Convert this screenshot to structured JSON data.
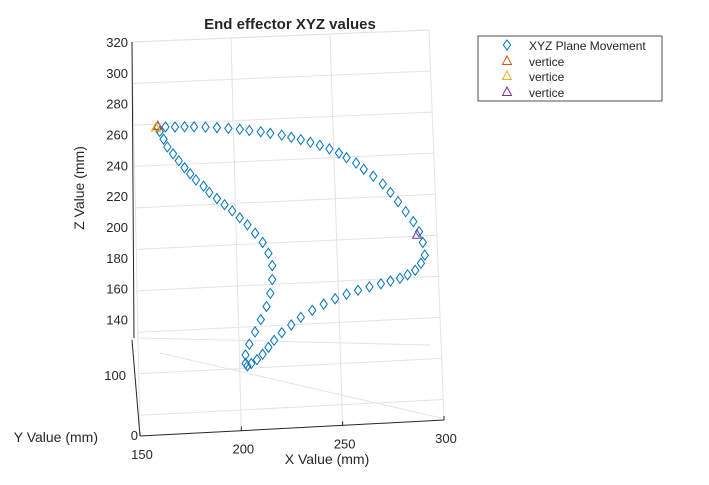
{
  "chart_data": {
    "type": "scatter",
    "title": "End effector XYZ values",
    "xlabel": "X Value (mm)",
    "ylabel": "Y Value (mm)",
    "zlabel": "Z Value (mm)",
    "x_ticks": [
      "150",
      "200",
      "250",
      "300"
    ],
    "y_ticks": [
      "0",
      "100"
    ],
    "z_ticks": [
      "140",
      "160",
      "180",
      "200",
      "220",
      "240",
      "260",
      "280",
      "300",
      "320"
    ],
    "xlim": [
      150,
      300
    ],
    "zlim": [
      130,
      320
    ],
    "grid": true,
    "legend_position": "outside-top-right",
    "series": [
      {
        "name": "XYZ Plane Movement",
        "marker": "diamond",
        "color": "#0072BD",
        "x": [
          152,
          156,
          161,
          166,
          171,
          177,
          183,
          189,
          195,
          200,
          206,
          211,
          217,
          222,
          227,
          232,
          237,
          242,
          247,
          251,
          256,
          260,
          265,
          270,
          274,
          278,
          282,
          286,
          289,
          291,
          292,
          290,
          287,
          283,
          279,
          274,
          269,
          263,
          257,
          251,
          245,
          239,
          233,
          227,
          222,
          217,
          213,
          210,
          207,
          204,
          201,
          199,
          198,
          198,
          200,
          203,
          206,
          209,
          211,
          212,
          212,
          210,
          207,
          203,
          199,
          195,
          191,
          187,
          183,
          179,
          176,
          172,
          169,
          166,
          163,
          160,
          157,
          155,
          153
        ],
        "z": [
          264.8,
          264.9,
          264.9,
          265.0,
          265.0,
          264.8,
          264.5,
          264.0,
          263.4,
          262.6,
          261.8,
          260.8,
          259.6,
          258.2,
          256.7,
          255.0,
          253.0,
          250.7,
          248.0,
          245.0,
          241.5,
          237.5,
          233.0,
          228.0,
          222.5,
          216.5,
          210.0,
          203.5,
          197.0,
          190.0,
          181.8,
          176.5,
          172.0,
          169.0,
          166.8,
          165.0,
          163.2,
          161.2,
          159.0,
          156.5,
          153.5,
          150.0,
          146.0,
          141.5,
          136.5,
          131.5,
          126.5,
          122.0,
          117.5,
          114.0,
          111.5,
          110.0,
          111.5,
          117.0,
          124.0,
          132.0,
          140.0,
          148.5,
          157.0,
          166.0,
          175.0,
          183.0,
          190.0,
          196.0,
          201.5,
          206.0,
          210.5,
          214.5,
          218.5,
          222.5,
          226.5,
          230.5,
          234.5,
          238.5,
          243.0,
          247.5,
          252.0,
          257.0,
          262.0
        ]
      },
      {
        "name": "vertice",
        "marker": "triangle",
        "color": "#D95319",
        "x": [
          152
        ],
        "z": [
          265.5
        ]
      },
      {
        "name": "vertice",
        "marker": "triangle",
        "color": "#EDB120",
        "x": [
          151
        ],
        "z": [
          264.5
        ]
      },
      {
        "name": "vertice",
        "marker": "triangle",
        "color": "#7E2F8E",
        "x": [
          288
        ],
        "z": [
          195.0
        ]
      }
    ]
  }
}
